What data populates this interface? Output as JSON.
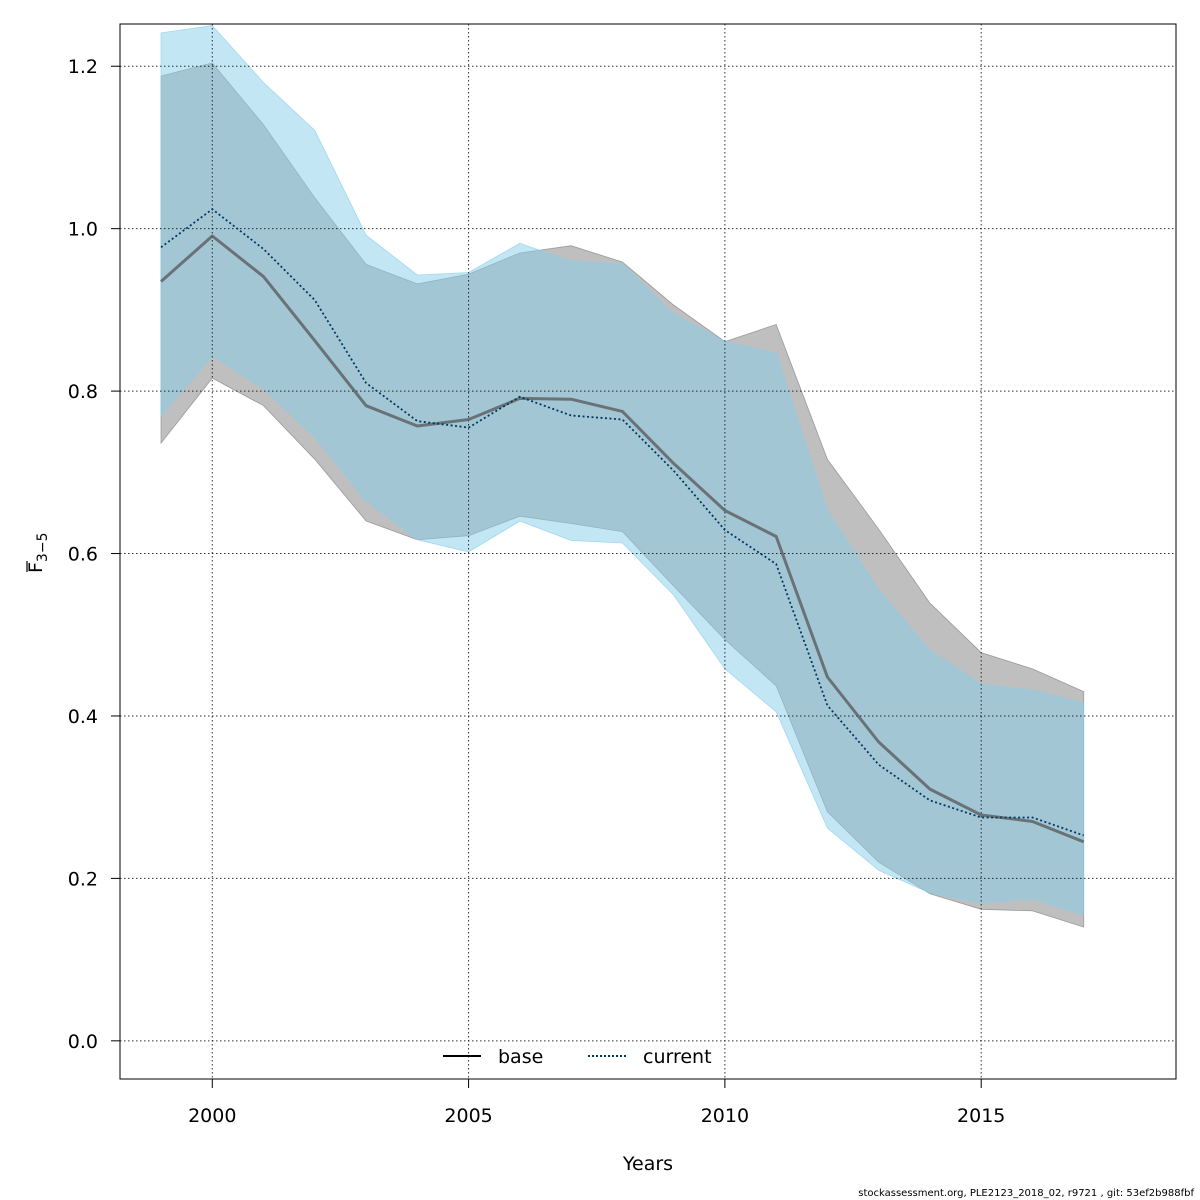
{
  "chart_data": {
    "type": "line",
    "title": "",
    "xlabel": "Years",
    "ylabel_main": "F",
    "ylabel_sub": "3−5",
    "xlim": [
      1998.2,
      2018.8
    ],
    "ylim": [
      -0.047,
      1.252
    ],
    "x_ticks": [
      2000,
      2005,
      2010,
      2015
    ],
    "y_ticks": [
      0.0,
      0.2,
      0.4,
      0.6,
      0.8,
      1.0,
      1.2
    ],
    "y_tick_labels": [
      "0.0",
      "0.2",
      "0.4",
      "0.6",
      "0.8",
      "1.0",
      "1.2"
    ],
    "x": [
      1999,
      2000,
      2001,
      2002,
      2003,
      2004,
      2005,
      2006,
      2007,
      2008,
      2009,
      2010,
      2011,
      2012,
      2013,
      2014,
      2015,
      2016,
      2017
    ],
    "series": [
      {
        "name": "base",
        "line_style": "solid",
        "line_color": "#555555",
        "band_color": "#808080",
        "values": [
          0.935,
          0.991,
          0.941,
          0.862,
          0.782,
          0.757,
          0.765,
          0.791,
          0.79,
          0.775,
          0.711,
          0.653,
          0.621,
          0.448,
          0.368,
          0.31,
          0.278,
          0.27,
          0.245
        ],
        "lower": [
          0.736,
          0.816,
          0.782,
          0.716,
          0.64,
          0.617,
          0.622,
          0.646,
          0.637,
          0.627,
          0.56,
          0.494,
          0.437,
          0.282,
          0.22,
          0.181,
          0.162,
          0.16,
          0.14
        ],
        "upper": [
          1.188,
          1.204,
          1.128,
          1.038,
          0.956,
          0.932,
          0.944,
          0.97,
          0.979,
          0.959,
          0.906,
          0.861,
          0.882,
          0.716,
          0.63,
          0.539,
          0.478,
          0.458,
          0.43
        ]
      },
      {
        "name": "current",
        "line_style": "dotted",
        "line_color": "#00395f",
        "band_color": "#87ceeb",
        "values": [
          0.977,
          1.024,
          0.975,
          0.912,
          0.81,
          0.763,
          0.755,
          0.793,
          0.77,
          0.765,
          0.702,
          0.629,
          0.587,
          0.413,
          0.34,
          0.296,
          0.275,
          0.275,
          0.253
        ],
        "lower": [
          0.77,
          0.843,
          0.803,
          0.743,
          0.665,
          0.617,
          0.602,
          0.64,
          0.616,
          0.613,
          0.549,
          0.458,
          0.405,
          0.262,
          0.21,
          0.182,
          0.17,
          0.175,
          0.155
        ],
        "upper": [
          1.241,
          1.25,
          1.18,
          1.121,
          0.992,
          0.943,
          0.946,
          0.982,
          0.96,
          0.957,
          0.895,
          0.861,
          0.847,
          0.653,
          0.555,
          0.481,
          0.439,
          0.432,
          0.416
        ]
      }
    ],
    "legend": {
      "position": "bottom-center",
      "entries": [
        "base",
        "current"
      ]
    },
    "grid": true
  },
  "footer": "stockassessment.org, PLE2123_2018_02, r9721 , git: 53ef2b988fbf"
}
